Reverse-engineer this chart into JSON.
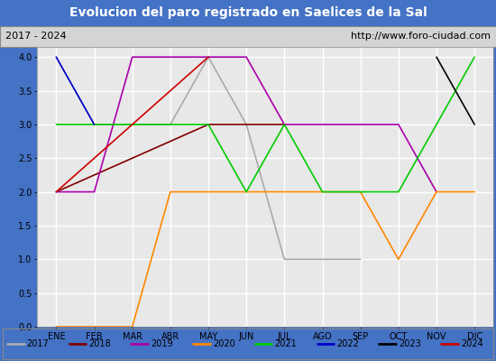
{
  "title": "Evolucion del paro registrado en Saelices de la Sal",
  "subtitle_left": "2017 - 2024",
  "subtitle_right": "http://www.foro-ciudad.com",
  "months": [
    "ENE",
    "FEB",
    "MAR",
    "ABR",
    "MAY",
    "JUN",
    "JUL",
    "AGO",
    "SEP",
    "OCT",
    "NOV",
    "DIC"
  ],
  "month_nums": [
    1,
    2,
    3,
    4,
    5,
    6,
    7,
    8,
    9,
    10,
    11,
    12
  ],
  "ylim": [
    0.0,
    4.15
  ],
  "yticks": [
    0.0,
    0.5,
    1.0,
    1.5,
    2.0,
    2.5,
    3.0,
    3.5,
    4.0
  ],
  "series": {
    "2017": {
      "color": "#aaaaaa",
      "data": {
        "0": 4,
        "1": 3,
        "2": 3,
        "3": 3,
        "4": 4,
        "5": 3,
        "6": 1,
        "7": 1,
        "8": 1
      }
    },
    "2018": {
      "color": "#800000",
      "data": {
        "0": 2,
        "4": 3,
        "5": 3,
        "6": 3
      }
    },
    "2019": {
      "color": "#aa00aa",
      "data": {
        "0": 2,
        "1": 2,
        "2": 4,
        "3": 4,
        "4": 4,
        "5": 4,
        "6": 3,
        "7": 3,
        "8": 3,
        "9": 3,
        "10": 2
      }
    },
    "2020": {
      "color": "#ff8800",
      "data": {
        "0": 0,
        "1": 0,
        "2": 0,
        "3": 2,
        "4": 2,
        "5": 2,
        "6": 2,
        "7": 2,
        "8": 2,
        "9": 1,
        "10": 2,
        "11": 2
      }
    },
    "2021": {
      "color": "#00cc00",
      "data": {
        "0": 3,
        "1": 3,
        "2": 3,
        "3": 3,
        "4": 3,
        "5": 2,
        "6": 3,
        "7": 2,
        "8": 2,
        "9": 2,
        "10": 3,
        "11": 4
      }
    },
    "2022": {
      "color": "#0000cc",
      "data": {
        "0": 4,
        "1": 3
      }
    },
    "2023": {
      "color": "#000000",
      "data": {
        "10": 4,
        "11": 3
      }
    },
    "2024": {
      "color": "#cc0000",
      "data": {
        "0": 2,
        "4": 4
      }
    }
  },
  "bg_title": "#4472c4",
  "bg_subtitle": "#d4d4d4",
  "bg_plot": "#e8e8e8",
  "grid_color": "#ffffff",
  "title_color": "#ffffff",
  "title_fontsize": 10,
  "subtitle_fontsize": 8,
  "tick_fontsize": 7,
  "legend_fontsize": 7
}
